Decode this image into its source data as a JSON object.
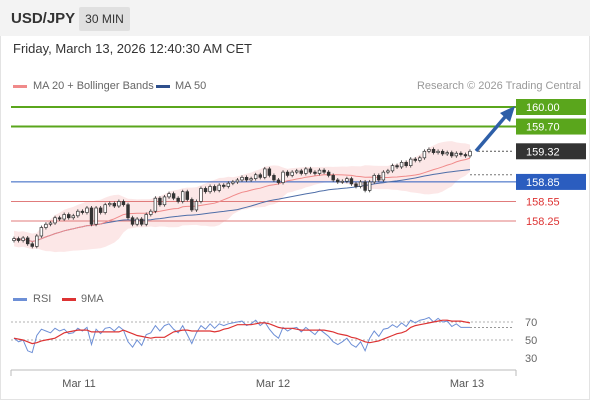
{
  "header": {
    "pair": "USD/JPY",
    "timeframe": "30 MIN",
    "timestamp": "Friday, March 13, 2026 12:40:30 AM CET"
  },
  "legend": {
    "ma20": "MA 20 + Bollinger Bands",
    "ma50": "MA 50",
    "credit": "Research © 2026 Trading Central",
    "rsi": "RSI",
    "rsi_ma": "9MA"
  },
  "colors": {
    "bollinger_fill": "#fbe3e3",
    "ma20": "#f08a8a",
    "ma50": "#4e6ea8",
    "resistance": "#5aa61c",
    "support_blue": "#2b5dbf",
    "support_red": "#e07b7b",
    "candle_up": "#ffffff",
    "candle_down": "#333333",
    "arrow": "#2e5fa8",
    "rsi": "#6d8fd6",
    "rsi_ma": "#dd3333"
  },
  "chart_data": {
    "type": "candlestick",
    "ylim": [
      157.7,
      160.2
    ],
    "x_ticks": [
      "Mar 11",
      "Mar 12",
      "Mar 13"
    ],
    "levels": [
      {
        "label": "160.00",
        "value": 160.0,
        "style": "resistance"
      },
      {
        "label": "159.70",
        "value": 159.7,
        "style": "resistance"
      },
      {
        "label": "159.32",
        "value": 159.32,
        "style": "last"
      },
      {
        "label": "158.85",
        "value": 158.85,
        "style": "support_blue"
      },
      {
        "label": "158.55",
        "value": 158.55,
        "style": "support_red"
      },
      {
        "label": "158.25",
        "value": 158.25,
        "style": "support_red"
      }
    ],
    "candles_close": [
      157.98,
      157.95,
      157.99,
      157.9,
      157.86,
      158.02,
      158.15,
      158.2,
      158.22,
      158.3,
      158.28,
      158.35,
      158.3,
      158.33,
      158.4,
      158.38,
      158.45,
      158.2,
      158.45,
      158.38,
      158.5,
      158.52,
      158.48,
      158.55,
      158.5,
      158.3,
      158.2,
      158.28,
      158.2,
      158.35,
      158.4,
      158.6,
      158.5,
      158.62,
      158.67,
      158.6,
      158.55,
      158.7,
      158.58,
      158.42,
      158.55,
      158.75,
      158.7,
      158.78,
      158.72,
      158.8,
      158.78,
      158.83,
      158.85,
      158.88,
      158.92,
      158.88,
      158.9,
      158.96,
      158.92,
      159.05,
      158.95,
      158.88,
      158.84,
      159.0,
      158.95,
      159.0,
      159.02,
      158.98,
      159.05,
      159.0,
      158.98,
      159.03,
      159.0,
      158.95,
      158.88,
      158.85,
      158.86,
      158.9,
      158.82,
      158.78,
      158.85,
      158.72,
      158.85,
      158.95,
      158.88,
      159.0,
      159.02,
      159.1,
      159.08,
      159.15,
      159.1,
      159.2,
      159.18,
      159.22,
      159.32,
      159.35,
      159.3,
      159.32,
      159.28,
      159.3,
      159.25,
      159.29,
      159.27,
      159.25,
      159.32
    ],
    "rsi": {
      "ticks": [
        70,
        50,
        30
      ],
      "ylim": [
        20,
        80
      ],
      "values": [
        52,
        48,
        50,
        38,
        36,
        55,
        62,
        60,
        58,
        63,
        60,
        62,
        57,
        58,
        63,
        60,
        64,
        45,
        62,
        57,
        63,
        64,
        60,
        65,
        61,
        48,
        42,
        50,
        44,
        56,
        58,
        66,
        60,
        66,
        68,
        62,
        58,
        66,
        56,
        46,
        58,
        66,
        62,
        68,
        63,
        68,
        66,
        68,
        69,
        70,
        71,
        66,
        68,
        72,
        66,
        70,
        62,
        56,
        52,
        64,
        60,
        63,
        64,
        59,
        64,
        60,
        56,
        62,
        58,
        54,
        48,
        45,
        48,
        52,
        45,
        42,
        48,
        38,
        52,
        60,
        54,
        62,
        63,
        67,
        64,
        69,
        65,
        72,
        69,
        72,
        73,
        75,
        70,
        74,
        70,
        71,
        65,
        68,
        64,
        64,
        64
      ],
      "ma9": [
        52,
        51,
        50,
        48,
        46,
        47,
        49,
        50,
        51,
        52,
        55,
        58,
        59,
        60,
        61,
        61,
        61,
        59,
        59,
        59,
        59,
        59,
        59,
        59,
        61,
        59,
        57,
        55,
        54,
        53,
        52,
        53,
        53,
        53,
        56,
        59,
        60,
        61,
        61,
        60,
        60,
        60,
        60,
        60,
        59,
        60,
        62,
        63,
        65,
        67,
        67,
        67,
        67,
        68,
        69,
        69,
        68,
        66,
        64,
        63,
        63,
        63,
        62,
        61,
        61,
        61,
        61,
        61,
        61,
        60,
        59,
        57,
        56,
        55,
        53,
        52,
        50,
        48,
        47,
        48,
        49,
        51,
        53,
        55,
        57,
        58,
        60,
        64,
        66,
        67,
        68,
        69,
        70,
        71,
        72,
        72,
        71,
        71,
        71,
        70,
        69
      ]
    }
  }
}
